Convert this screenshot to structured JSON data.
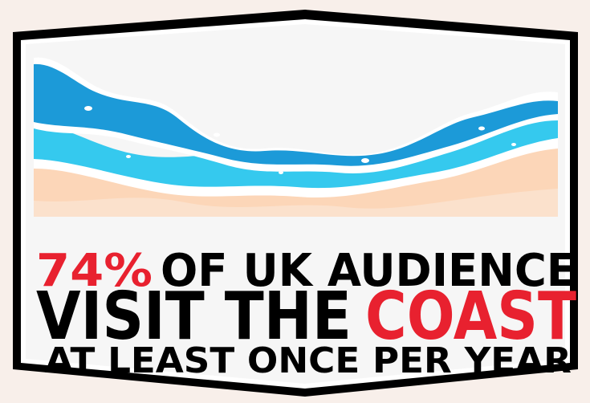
{
  "headline": {
    "line1": {
      "highlight": "74%",
      "rest": "OF UK AUDIENCE"
    },
    "line2": {
      "lead": "VISIT THE",
      "highlight": "COAST"
    },
    "line3": "AT LEAST ONCE PER YEAR"
  }
}
